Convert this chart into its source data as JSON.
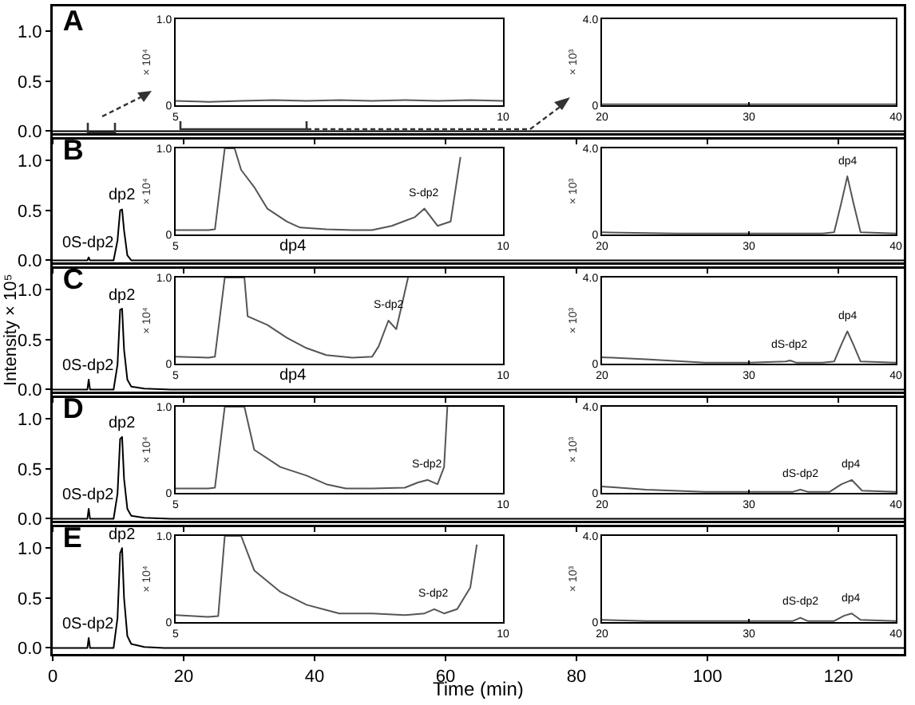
{
  "chart_data": [
    {
      "type": "line",
      "title": "A",
      "x": [
        0,
        130
      ],
      "series": [
        {
          "color": "#000000",
          "values": [
            0,
            0
          ]
        }
      ],
      "xlim": [
        0,
        130
      ],
      "ylim": [
        -0.06,
        1.25
      ],
      "xticks": [
        0,
        20,
        40,
        60,
        80,
        100,
        120
      ],
      "yticks": [
        {
          "value": 0,
          "label": "0.0"
        },
        {
          "value": 0.5,
          "label": "0.5"
        },
        {
          "value": 1,
          "label": "1.0"
        }
      ],
      "tick_labels": "y"
    },
    {
      "type": "line",
      "ylabel": "× 10⁴",
      "x": [
        5,
        5.5,
        6,
        6.5,
        7,
        7.5,
        8,
        8.5,
        9,
        9.5,
        10
      ],
      "series": [
        {
          "color": "#555555",
          "values": [
            0.05,
            0.04,
            0.05,
            0.06,
            0.05,
            0.06,
            0.05,
            0.06,
            0.05,
            0.06,
            0.05
          ]
        }
      ],
      "xlim": [
        5,
        10
      ],
      "ylim": [
        0,
        1
      ],
      "xticks": [
        5,
        10
      ],
      "yticks": [
        {
          "value": 0,
          "label": "0"
        },
        {
          "value": 1,
          "label": "1.0"
        }
      ]
    },
    {
      "type": "line",
      "ylabel": "× 10³",
      "x": [
        20,
        25,
        30,
        35,
        40
      ],
      "series": [
        {
          "color": "#555555",
          "values": [
            0.05,
            0.05,
            0.05,
            0.05,
            0.05
          ]
        }
      ],
      "xlim": [
        20,
        40
      ],
      "ylim": [
        0,
        4
      ],
      "xticks": [
        20,
        30,
        40
      ],
      "yticks": [
        {
          "value": 0,
          "label": "0"
        },
        {
          "value": 4,
          "label": "4.0"
        }
      ]
    },
    {
      "type": "line",
      "title": "B",
      "x": [
        0,
        5.3,
        5.5,
        5.7,
        9.3,
        9.9,
        10.3,
        10.6,
        10.9,
        11.4,
        12,
        130
      ],
      "series": [
        {
          "color": "#000000",
          "values": [
            0,
            0,
            0.03,
            0,
            0,
            0.2,
            0.5,
            0.51,
            0.3,
            0.05,
            0,
            0
          ]
        }
      ],
      "xlim": [
        0,
        130
      ],
      "ylim": [
        -0.06,
        1.25
      ],
      "xticks": [
        0,
        20,
        40,
        60,
        80,
        100,
        120
      ],
      "yticks": [
        {
          "value": 0,
          "label": "0.0"
        },
        {
          "value": 0.5,
          "label": "0.5"
        },
        {
          "value": 1,
          "label": "1.0"
        }
      ],
      "tick_labels": "y",
      "annotations": [
        {
          "text": "dp2",
          "x": 10.6,
          "y": 0.51
        },
        {
          "text": "0S-dp2",
          "x": 5.5,
          "y": 0.03
        },
        {
          "text": "dp4",
          "x": 36.6,
          "y": 0
        }
      ]
    },
    {
      "type": "line",
      "ylabel": "× 10⁴",
      "x": [
        5,
        5.5,
        5.6,
        5.75,
        5.9,
        6,
        6.2,
        6.4,
        6.7,
        6.9,
        7.3,
        7.7,
        8,
        8.3,
        8.65,
        8.8,
        9,
        9.2,
        9.35
      ],
      "series": [
        {
          "color": "#555555",
          "values": [
            0.05,
            0.05,
            0.06,
            1,
            1,
            0.75,
            0.55,
            0.3,
            0.15,
            0.08,
            0.06,
            0.05,
            0.05,
            0.1,
            0.2,
            0.3,
            0.1,
            0.15,
            0.9
          ]
        }
      ],
      "xlim": [
        5,
        10
      ],
      "ylim": [
        0,
        1
      ],
      "xticks": [
        5,
        10
      ],
      "yticks": [
        {
          "value": 0,
          "label": "0"
        },
        {
          "value": 1,
          "label": "1.0"
        }
      ],
      "annotations": [
        {
          "text": "S-dp2",
          "x": 8.8,
          "y": 0.3
        }
      ]
    },
    {
      "type": "line",
      "ylabel": "× 10³",
      "x": [
        20,
        25,
        30,
        35,
        35.8,
        36.3,
        36.7,
        37.1,
        37.6,
        40
      ],
      "series": [
        {
          "color": "#555555",
          "values": [
            0.1,
            0.05,
            0.05,
            0.05,
            0.1,
            1.5,
            2.7,
            1.5,
            0.1,
            0.05
          ]
        }
      ],
      "xlim": [
        20,
        40
      ],
      "ylim": [
        0,
        4
      ],
      "xticks": [
        20,
        30,
        40
      ],
      "yticks": [
        {
          "value": 0,
          "label": "0"
        },
        {
          "value": 4,
          "label": "4.0"
        }
      ],
      "annotations": [
        {
          "text": "dp4",
          "x": 36.7,
          "y": 2.7
        }
      ]
    },
    {
      "type": "line",
      "title": "C",
      "ylabel": "Intensity × 10⁵",
      "x": [
        0,
        5.3,
        5.5,
        5.7,
        9.3,
        9.9,
        10.3,
        10.6,
        10.9,
        11.4,
        12,
        14,
        18,
        130
      ],
      "series": [
        {
          "color": "#000000",
          "values": [
            0,
            0,
            0.1,
            0,
            0,
            0.25,
            0.8,
            0.81,
            0.4,
            0.1,
            0.03,
            0.01,
            0,
            0
          ]
        }
      ],
      "xlim": [
        0,
        130
      ],
      "ylim": [
        -0.06,
        1.25
      ],
      "xticks": [
        0,
        20,
        40,
        60,
        80,
        100,
        120
      ],
      "yticks": [
        {
          "value": 0,
          "label": "0.0"
        },
        {
          "value": 0.5,
          "label": "0.5"
        },
        {
          "value": 1,
          "label": "1.0"
        }
      ],
      "tick_labels": "y",
      "annotations": [
        {
          "text": "dp2",
          "x": 10.6,
          "y": 0.81
        },
        {
          "text": "0S-dp2",
          "x": 5.5,
          "y": 0.1
        },
        {
          "text": "dp4",
          "x": 36.6,
          "y": 0
        }
      ]
    },
    {
      "type": "line",
      "ylabel": "× 10⁴",
      "x": [
        5,
        5.5,
        5.6,
        5.75,
        6.05,
        6.1,
        6.4,
        6.7,
        7,
        7.3,
        7.7,
        8,
        8.1,
        8.25,
        8.37,
        8.55
      ],
      "series": [
        {
          "color": "#555555",
          "values": [
            0.08,
            0.07,
            0.08,
            1,
            1,
            0.55,
            0.45,
            0.3,
            0.18,
            0.1,
            0.07,
            0.08,
            0.2,
            0.5,
            0.4,
            1
          ]
        }
      ],
      "xlim": [
        5,
        10
      ],
      "ylim": [
        0,
        1
      ],
      "xticks": [
        5,
        10
      ],
      "yticks": [
        {
          "value": 0,
          "label": "0"
        },
        {
          "value": 1,
          "label": "1.0"
        }
      ],
      "annotations": [
        {
          "text": "S-dp2",
          "x": 8.25,
          "y": 0.5
        }
      ]
    },
    {
      "type": "line",
      "ylabel": "× 10³",
      "x": [
        20,
        23,
        27,
        30,
        32.5,
        32.8,
        33.2,
        35,
        35.8,
        36.3,
        36.7,
        37.1,
        37.6,
        40
      ],
      "series": [
        {
          "color": "#555555",
          "values": [
            0.3,
            0.2,
            0.05,
            0.05,
            0.1,
            0.15,
            0.05,
            0.05,
            0.1,
            0.9,
            1.5,
            0.9,
            0.1,
            0.05
          ]
        }
      ],
      "xlim": [
        20,
        40
      ],
      "ylim": [
        0,
        4
      ],
      "xticks": [
        20,
        30,
        40
      ],
      "yticks": [
        {
          "value": 0,
          "label": "0"
        },
        {
          "value": 4,
          "label": "4.0"
        }
      ],
      "annotations": [
        {
          "text": "dS-dp2",
          "x": 32.8,
          "y": 0.15
        },
        {
          "text": "dp4",
          "x": 36.7,
          "y": 1.5
        }
      ]
    },
    {
      "type": "line",
      "title": "D",
      "x": [
        0,
        5.3,
        5.5,
        5.7,
        9.3,
        9.9,
        10.3,
        10.6,
        10.9,
        11.4,
        12,
        14,
        18,
        130
      ],
      "series": [
        {
          "color": "#000000",
          "values": [
            0,
            0,
            0.1,
            0,
            0,
            0.25,
            0.8,
            0.82,
            0.4,
            0.1,
            0.03,
            0.01,
            0,
            0
          ]
        }
      ],
      "xlim": [
        0,
        130
      ],
      "ylim": [
        -0.06,
        1.25
      ],
      "xticks": [
        0,
        20,
        40,
        60,
        80,
        100,
        120
      ],
      "yticks": [
        {
          "value": 0,
          "label": "0.0"
        },
        {
          "value": 0.5,
          "label": "0.5"
        },
        {
          "value": 1,
          "label": "1.0"
        }
      ],
      "tick_labels": "y",
      "annotations": [
        {
          "text": "dp2",
          "x": 10.6,
          "y": 0.82
        },
        {
          "text": "0S-dp2",
          "x": 5.5,
          "y": 0.1
        }
      ]
    },
    {
      "type": "line",
      "ylabel": "× 10⁴",
      "x": [
        5,
        5.5,
        5.6,
        5.75,
        6.05,
        6.2,
        6.6,
        7,
        7.3,
        7.6,
        8,
        8.5,
        8.7,
        8.85,
        9,
        9.1,
        9.15
      ],
      "series": [
        {
          "color": "#555555",
          "values": [
            0.05,
            0.05,
            0.06,
            1,
            1,
            0.5,
            0.3,
            0.2,
            0.1,
            0.05,
            0.05,
            0.06,
            0.12,
            0.15,
            0.1,
            0.3,
            1
          ]
        }
      ],
      "xlim": [
        5,
        10
      ],
      "ylim": [
        0,
        1
      ],
      "xticks": [
        5,
        10
      ],
      "yticks": [
        {
          "value": 0,
          "label": "0"
        },
        {
          "value": 1,
          "label": "1.0"
        }
      ],
      "annotations": [
        {
          "text": "S-dp2",
          "x": 8.85,
          "y": 0.15
        }
      ]
    },
    {
      "type": "line",
      "ylabel": "× 10³",
      "x": [
        20,
        23,
        27,
        30,
        33,
        33.5,
        34,
        35.5,
        36.3,
        37,
        37.7,
        40
      ],
      "series": [
        {
          "color": "#555555",
          "values": [
            0.3,
            0.15,
            0.05,
            0.05,
            0.05,
            0.15,
            0.05,
            0.05,
            0.4,
            0.6,
            0.1,
            0.05
          ]
        }
      ],
      "xlim": [
        20,
        40
      ],
      "ylim": [
        0,
        4
      ],
      "xticks": [
        20,
        30,
        40
      ],
      "yticks": [
        {
          "value": 0,
          "label": "0"
        },
        {
          "value": 4,
          "label": "4.0"
        }
      ],
      "annotations": [
        {
          "text": "dS-dp2",
          "x": 33.5,
          "y": 0.15
        },
        {
          "text": "dp4",
          "x": 37,
          "y": 0.6
        }
      ]
    },
    {
      "type": "line",
      "title": "E",
      "xlabel": "Time (min)",
      "x": [
        0,
        5.3,
        5.5,
        5.7,
        9.3,
        9.9,
        10.3,
        10.6,
        10.9,
        11.4,
        12,
        14,
        17,
        130
      ],
      "series": [
        {
          "color": "#000000",
          "values": [
            0,
            0,
            0.1,
            0,
            0,
            0.3,
            0.95,
            1,
            0.5,
            0.12,
            0.04,
            0.01,
            0,
            0
          ]
        }
      ],
      "xlim": [
        0,
        130
      ],
      "ylim": [
        -0.06,
        1.25
      ],
      "xticks": [
        0,
        20,
        40,
        60,
        80,
        100,
        120
      ],
      "yticks": [
        {
          "value": 0,
          "label": "0.0"
        },
        {
          "value": 0.5,
          "label": "0.5"
        },
        {
          "value": 1,
          "label": "1.0"
        }
      ],
      "annotations": [
        {
          "text": "dp2",
          "x": 10.6,
          "y": 1
        },
        {
          "text": "0S-dp2",
          "x": 5.5,
          "y": 0.1
        }
      ]
    },
    {
      "type": "line",
      "ylabel": "× 10⁴",
      "x": [
        5,
        5.5,
        5.65,
        5.75,
        6,
        6.2,
        6.6,
        7,
        7.5,
        8,
        8.5,
        8.8,
        8.95,
        9.1,
        9.3,
        9.5,
        9.6
      ],
      "series": [
        {
          "color": "#555555",
          "values": [
            0.08,
            0.06,
            0.07,
            1,
            1,
            0.6,
            0.35,
            0.2,
            0.1,
            0.1,
            0.08,
            0.1,
            0.15,
            0.1,
            0.15,
            0.4,
            0.9
          ]
        }
      ],
      "xlim": [
        5,
        10
      ],
      "ylim": [
        0,
        1
      ],
      "xticks": [
        5,
        10
      ],
      "yticks": [
        {
          "value": 0,
          "label": "0"
        },
        {
          "value": 1,
          "label": "1.0"
        }
      ],
      "annotations": [
        {
          "text": "S-dp2",
          "x": 8.95,
          "y": 0.15
        }
      ]
    },
    {
      "type": "line",
      "ylabel": "× 10³",
      "x": [
        20,
        23,
        27,
        30,
        33,
        33.5,
        34,
        35.8,
        36.5,
        37,
        37.6,
        40
      ],
      "series": [
        {
          "color": "#555555",
          "values": [
            0.1,
            0.05,
            0.05,
            0.05,
            0.05,
            0.2,
            0.05,
            0.05,
            0.3,
            0.4,
            0.1,
            0.05
          ]
        }
      ],
      "xlim": [
        20,
        40
      ],
      "ylim": [
        0,
        4
      ],
      "xticks": [
        20,
        30,
        40
      ],
      "yticks": [
        {
          "value": 0,
          "label": "0"
        },
        {
          "value": 4,
          "label": "4.0"
        }
      ],
      "annotations": [
        {
          "text": "dS-dp2",
          "x": 33.5,
          "y": 0.2
        },
        {
          "text": "dp4",
          "x": 37,
          "y": 0.4
        }
      ]
    }
  ]
}
